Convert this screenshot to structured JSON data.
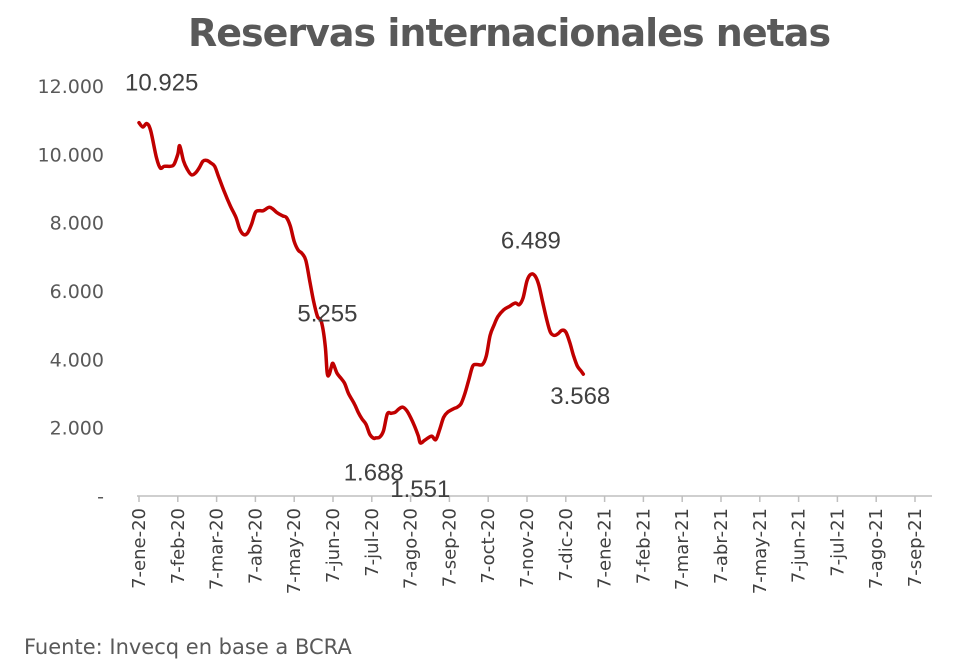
{
  "chart_data": {
    "type": "line",
    "title": "Reservas internacionales netas",
    "source": "Fuente: Invecq en base a BCRA",
    "ylim": [
      0,
      12000
    ],
    "yticks": [
      {
        "value": 0,
        "label": "-"
      },
      {
        "value": 2000,
        "label": "2.000"
      },
      {
        "value": 4000,
        "label": "4.000"
      },
      {
        "value": 6000,
        "label": "6.000"
      },
      {
        "value": 8000,
        "label": "8.000"
      },
      {
        "value": 10000,
        "label": "10.000"
      },
      {
        "value": 12000,
        "label": "12.000"
      }
    ],
    "xticks": [
      "7-ene-20",
      "7-feb-20",
      "7-mar-20",
      "7-abr-20",
      "7-may-20",
      "7-jun-20",
      "7-jul-20",
      "7-ago-20",
      "7-sep-20",
      "7-oct-20",
      "7-nov-20",
      "7-dic-20",
      "7-ene-21",
      "7-feb-21",
      "7-mar-21",
      "7-abr-21",
      "7-may-21",
      "7-jun-21",
      "7-jul-21",
      "7-ago-21",
      "7-sep-21"
    ],
    "grid": false,
    "legend": "none",
    "series_color": "#c00000",
    "series": [
      {
        "name": "",
        "points": [
          [
            0.0,
            10925
          ],
          [
            0.1,
            10800
          ],
          [
            0.2,
            10900
          ],
          [
            0.3,
            10700
          ],
          [
            0.45,
            9900
          ],
          [
            0.55,
            9600
          ],
          [
            0.65,
            9650
          ],
          [
            0.8,
            9650
          ],
          [
            0.9,
            9700
          ],
          [
            1.0,
            10000
          ],
          [
            1.05,
            10250
          ],
          [
            1.15,
            9800
          ],
          [
            1.25,
            9550
          ],
          [
            1.35,
            9400
          ],
          [
            1.45,
            9450
          ],
          [
            1.55,
            9600
          ],
          [
            1.65,
            9800
          ],
          [
            1.75,
            9820
          ],
          [
            1.85,
            9750
          ],
          [
            1.95,
            9650
          ],
          [
            2.05,
            9350
          ],
          [
            2.2,
            8900
          ],
          [
            2.35,
            8500
          ],
          [
            2.5,
            8150
          ],
          [
            2.6,
            7800
          ],
          [
            2.7,
            7650
          ],
          [
            2.8,
            7700
          ],
          [
            2.9,
            7950
          ],
          [
            3.0,
            8300
          ],
          [
            3.1,
            8350
          ],
          [
            3.2,
            8350
          ],
          [
            3.35,
            8450
          ],
          [
            3.45,
            8400
          ],
          [
            3.55,
            8300
          ],
          [
            3.7,
            8200
          ],
          [
            3.8,
            8150
          ],
          [
            3.9,
            7900
          ],
          [
            4.0,
            7450
          ],
          [
            4.1,
            7200
          ],
          [
            4.2,
            7100
          ],
          [
            4.3,
            6900
          ],
          [
            4.4,
            6300
          ],
          [
            4.5,
            5700
          ],
          [
            4.6,
            5255
          ],
          [
            4.7,
            5100
          ],
          [
            4.8,
            4400
          ],
          [
            4.85,
            3600
          ],
          [
            4.9,
            3550
          ],
          [
            4.95,
            3750
          ],
          [
            5.0,
            3880
          ],
          [
            5.1,
            3600
          ],
          [
            5.2,
            3450
          ],
          [
            5.3,
            3300
          ],
          [
            5.4,
            3000
          ],
          [
            5.55,
            2700
          ],
          [
            5.65,
            2450
          ],
          [
            5.75,
            2250
          ],
          [
            5.85,
            2100
          ],
          [
            5.95,
            1800
          ],
          [
            6.05,
            1688
          ],
          [
            6.1,
            1700
          ],
          [
            6.2,
            1720
          ],
          [
            6.3,
            1900
          ],
          [
            6.4,
            2400
          ],
          [
            6.5,
            2420
          ],
          [
            6.6,
            2450
          ],
          [
            6.7,
            2550
          ],
          [
            6.8,
            2600
          ],
          [
            6.9,
            2500
          ],
          [
            7.0,
            2300
          ],
          [
            7.1,
            2050
          ],
          [
            7.2,
            1750
          ],
          [
            7.25,
            1551
          ],
          [
            7.35,
            1620
          ],
          [
            7.45,
            1700
          ],
          [
            7.55,
            1750
          ],
          [
            7.65,
            1650
          ],
          [
            7.75,
            1950
          ],
          [
            7.85,
            2300
          ],
          [
            7.95,
            2450
          ],
          [
            8.1,
            2550
          ],
          [
            8.2,
            2600
          ],
          [
            8.3,
            2700
          ],
          [
            8.4,
            3000
          ],
          [
            8.5,
            3400
          ],
          [
            8.6,
            3800
          ],
          [
            8.7,
            3850
          ],
          [
            8.85,
            3850
          ],
          [
            8.95,
            4100
          ],
          [
            9.05,
            4700
          ],
          [
            9.15,
            5000
          ],
          [
            9.25,
            5250
          ],
          [
            9.4,
            5450
          ],
          [
            9.55,
            5550
          ],
          [
            9.7,
            5650
          ],
          [
            9.8,
            5600
          ],
          [
            9.9,
            5800
          ],
          [
            10.0,
            6300
          ],
          [
            10.1,
            6489
          ],
          [
            10.2,
            6450
          ],
          [
            10.3,
            6200
          ],
          [
            10.4,
            5700
          ],
          [
            10.5,
            5200
          ],
          [
            10.6,
            4800
          ],
          [
            10.7,
            4700
          ],
          [
            10.8,
            4750
          ],
          [
            10.9,
            4850
          ],
          [
            11.0,
            4800
          ],
          [
            11.1,
            4500
          ],
          [
            11.2,
            4100
          ],
          [
            11.3,
            3800
          ],
          [
            11.4,
            3650
          ],
          [
            11.45,
            3568
          ]
        ]
      }
    ],
    "data_labels": [
      {
        "x": 0.0,
        "y": 10925,
        "text": "10.925"
      },
      {
        "x": 4.6,
        "y": 5255,
        "text": "5.255"
      },
      {
        "x": 6.05,
        "y": 1688,
        "text": "1.688"
      },
      {
        "x": 7.25,
        "y": 1551,
        "text": "1.551"
      },
      {
        "x": 10.1,
        "y": 6489,
        "text": "6.489"
      },
      {
        "x": 11.45,
        "y": 3568,
        "text": "3.568"
      }
    ]
  }
}
